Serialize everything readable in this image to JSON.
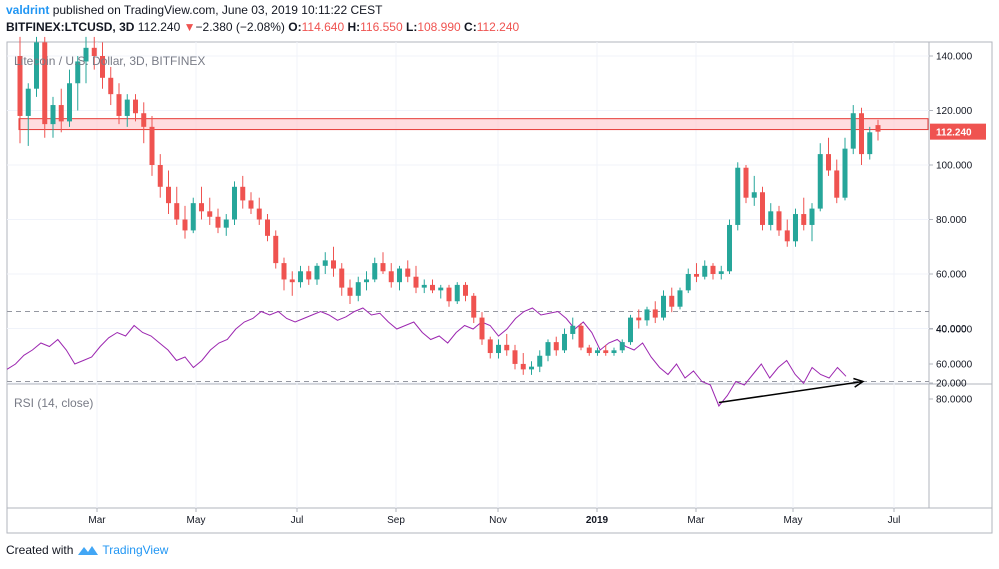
{
  "header": {
    "author": "valdrint",
    "published_text": "published on TradingView.com, June 03, 2019 10:11:22 CEST",
    "symbol": "BITFINEX:LTCUSD, 3D",
    "last": "112.240",
    "change": "−2.380 (−2.08%)",
    "o_label": "O:",
    "o_value": "114.640",
    "h_label": "H:",
    "h_value": "116.550",
    "l_label": "L:",
    "l_value": "108.990",
    "c_label": "C:",
    "c_value": "112.240"
  },
  "footer": {
    "created_with": "Created with",
    "brand": "TradingView"
  },
  "colors": {
    "up": "#26a69a",
    "down": "#ef5350",
    "rsi_line": "#9c27b0",
    "rsi_band": "#f3e5f5",
    "zone_fill": "#ffcdd2",
    "zone_stroke": "#e53935",
    "price_tag": "#ef5350",
    "arrow": "#000000"
  },
  "chart_data": [
    {
      "type": "candlestick",
      "title": "Litecoin / U.S. Dollar, 3D, BITFINEX",
      "y_ticks": [
        "140.000",
        "120.000",
        "100.000",
        "80.000",
        "60.000",
        "40.000",
        "20.000"
      ],
      "ylim": [
        20,
        147
      ],
      "x_ticks": [
        "Mar",
        "May",
        "Jul",
        "Sep",
        "Nov",
        "2019",
        "Mar",
        "May",
        "Jul"
      ],
      "last_price_label": "112.240",
      "resistance_zone": [
        113,
        117
      ],
      "series": [
        {
          "o": 140,
          "h": 147,
          "l": 108,
          "c": 118
        },
        {
          "o": 118,
          "h": 130,
          "l": 107,
          "c": 128
        },
        {
          "o": 128,
          "h": 150,
          "l": 125,
          "c": 145
        },
        {
          "o": 145,
          "h": 150,
          "l": 110,
          "c": 115
        },
        {
          "o": 115,
          "h": 125,
          "l": 110,
          "c": 122
        },
        {
          "o": 122,
          "h": 128,
          "l": 112,
          "c": 116
        },
        {
          "o": 116,
          "h": 135,
          "l": 114,
          "c": 130
        },
        {
          "o": 130,
          "h": 140,
          "l": 120,
          "c": 138
        },
        {
          "o": 138,
          "h": 150,
          "l": 130,
          "c": 143
        },
        {
          "o": 143,
          "h": 148,
          "l": 135,
          "c": 140
        },
        {
          "o": 140,
          "h": 145,
          "l": 128,
          "c": 132
        },
        {
          "o": 132,
          "h": 136,
          "l": 122,
          "c": 126
        },
        {
          "o": 126,
          "h": 130,
          "l": 115,
          "c": 118
        },
        {
          "o": 118,
          "h": 126,
          "l": 114,
          "c": 124
        },
        {
          "o": 124,
          "h": 126,
          "l": 116,
          "c": 119
        },
        {
          "o": 119,
          "h": 123,
          "l": 108,
          "c": 114
        },
        {
          "o": 114,
          "h": 118,
          "l": 96,
          "c": 100
        },
        {
          "o": 100,
          "h": 104,
          "l": 88,
          "c": 92
        },
        {
          "o": 92,
          "h": 98,
          "l": 82,
          "c": 86
        },
        {
          "o": 86,
          "h": 92,
          "l": 78,
          "c": 80
        },
        {
          "o": 80,
          "h": 85,
          "l": 73,
          "c": 76
        },
        {
          "o": 76,
          "h": 88,
          "l": 75,
          "c": 86
        },
        {
          "o": 86,
          "h": 92,
          "l": 80,
          "c": 83
        },
        {
          "o": 83,
          "h": 88,
          "l": 78,
          "c": 81
        },
        {
          "o": 81,
          "h": 84,
          "l": 75,
          "c": 77
        },
        {
          "o": 77,
          "h": 82,
          "l": 74,
          "c": 80
        },
        {
          "o": 80,
          "h": 94,
          "l": 78,
          "c": 92
        },
        {
          "o": 92,
          "h": 96,
          "l": 84,
          "c": 87
        },
        {
          "o": 87,
          "h": 90,
          "l": 82,
          "c": 84
        },
        {
          "o": 84,
          "h": 88,
          "l": 78,
          "c": 80
        },
        {
          "o": 80,
          "h": 82,
          "l": 72,
          "c": 74
        },
        {
          "o": 74,
          "h": 76,
          "l": 62,
          "c": 64
        },
        {
          "o": 64,
          "h": 66,
          "l": 54,
          "c": 58
        },
        {
          "o": 58,
          "h": 61,
          "l": 52,
          "c": 57
        },
        {
          "o": 57,
          "h": 63,
          "l": 55,
          "c": 61
        },
        {
          "o": 61,
          "h": 63,
          "l": 56,
          "c": 58
        },
        {
          "o": 58,
          "h": 64,
          "l": 56,
          "c": 63
        },
        {
          "o": 63,
          "h": 68,
          "l": 60,
          "c": 65
        },
        {
          "o": 65,
          "h": 70,
          "l": 59,
          "c": 62
        },
        {
          "o": 62,
          "h": 64,
          "l": 52,
          "c": 55
        },
        {
          "o": 55,
          "h": 58,
          "l": 49,
          "c": 52
        },
        {
          "o": 52,
          "h": 59,
          "l": 50,
          "c": 57
        },
        {
          "o": 57,
          "h": 61,
          "l": 54,
          "c": 58
        },
        {
          "o": 58,
          "h": 66,
          "l": 57,
          "c": 64
        },
        {
          "o": 64,
          "h": 68,
          "l": 60,
          "c": 61
        },
        {
          "o": 61,
          "h": 64,
          "l": 55,
          "c": 57
        },
        {
          "o": 57,
          "h": 63,
          "l": 54,
          "c": 62
        },
        {
          "o": 62,
          "h": 65,
          "l": 57,
          "c": 59
        },
        {
          "o": 59,
          "h": 63,
          "l": 53,
          "c": 55
        },
        {
          "o": 55,
          "h": 58,
          "l": 53,
          "c": 56
        },
        {
          "o": 56,
          "h": 58,
          "l": 53,
          "c": 54
        },
        {
          "o": 54,
          "h": 56,
          "l": 51,
          "c": 55
        },
        {
          "o": 55,
          "h": 56,
          "l": 48,
          "c": 50
        },
        {
          "o": 50,
          "h": 57,
          "l": 49,
          "c": 56
        },
        {
          "o": 56,
          "h": 57,
          "l": 50,
          "c": 52
        },
        {
          "o": 52,
          "h": 53,
          "l": 42,
          "c": 44
        },
        {
          "o": 44,
          "h": 46,
          "l": 34,
          "c": 36
        },
        {
          "o": 36,
          "h": 37,
          "l": 29,
          "c": 31
        },
        {
          "o": 31,
          "h": 36,
          "l": 29,
          "c": 34
        },
        {
          "o": 34,
          "h": 38,
          "l": 30,
          "c": 32
        },
        {
          "o": 32,
          "h": 34,
          "l": 25,
          "c": 27
        },
        {
          "o": 27,
          "h": 31,
          "l": 23,
          "c": 25
        },
        {
          "o": 25,
          "h": 28,
          "l": 23,
          "c": 26
        },
        {
          "o": 26,
          "h": 32,
          "l": 24,
          "c": 30
        },
        {
          "o": 30,
          "h": 36,
          "l": 28,
          "c": 35
        },
        {
          "o": 35,
          "h": 37,
          "l": 30,
          "c": 32
        },
        {
          "o": 32,
          "h": 40,
          "l": 31,
          "c": 38
        },
        {
          "o": 38,
          "h": 44,
          "l": 36,
          "c": 41
        },
        {
          "o": 41,
          "h": 42,
          "l": 32,
          "c": 33
        },
        {
          "o": 33,
          "h": 34,
          "l": 30,
          "c": 31
        },
        {
          "o": 31,
          "h": 33,
          "l": 30,
          "c": 32
        },
        {
          "o": 32,
          "h": 34,
          "l": 30,
          "c": 31
        },
        {
          "o": 31,
          "h": 33,
          "l": 30,
          "c": 32
        },
        {
          "o": 32,
          "h": 36,
          "l": 31,
          "c": 35
        },
        {
          "o": 35,
          "h": 45,
          "l": 34,
          "c": 44
        },
        {
          "o": 44,
          "h": 47,
          "l": 40,
          "c": 43
        },
        {
          "o": 43,
          "h": 48,
          "l": 41,
          "c": 47
        },
        {
          "o": 47,
          "h": 50,
          "l": 42,
          "c": 44
        },
        {
          "o": 44,
          "h": 54,
          "l": 43,
          "c": 52
        },
        {
          "o": 52,
          "h": 55,
          "l": 46,
          "c": 48
        },
        {
          "o": 48,
          "h": 55,
          "l": 47,
          "c": 54
        },
        {
          "o": 54,
          "h": 62,
          "l": 53,
          "c": 60
        },
        {
          "o": 60,
          "h": 64,
          "l": 57,
          "c": 59
        },
        {
          "o": 59,
          "h": 65,
          "l": 58,
          "c": 63
        },
        {
          "o": 63,
          "h": 64,
          "l": 58,
          "c": 60
        },
        {
          "o": 60,
          "h": 63,
          "l": 58,
          "c": 61
        },
        {
          "o": 61,
          "h": 80,
          "l": 60,
          "c": 78
        },
        {
          "o": 78,
          "h": 101,
          "l": 76,
          "c": 99
        },
        {
          "o": 99,
          "h": 100,
          "l": 86,
          "c": 88
        },
        {
          "o": 88,
          "h": 96,
          "l": 85,
          "c": 90
        },
        {
          "o": 90,
          "h": 92,
          "l": 76,
          "c": 78
        },
        {
          "o": 78,
          "h": 86,
          "l": 76,
          "c": 83
        },
        {
          "o": 83,
          "h": 85,
          "l": 74,
          "c": 76
        },
        {
          "o": 76,
          "h": 80,
          "l": 70,
          "c": 72
        },
        {
          "o": 72,
          "h": 84,
          "l": 70,
          "c": 82
        },
        {
          "o": 82,
          "h": 88,
          "l": 76,
          "c": 78
        },
        {
          "o": 78,
          "h": 86,
          "l": 72,
          "c": 84
        },
        {
          "o": 84,
          "h": 108,
          "l": 83,
          "c": 104
        },
        {
          "o": 104,
          "h": 110,
          "l": 96,
          "c": 98
        },
        {
          "o": 98,
          "h": 102,
          "l": 86,
          "c": 88
        },
        {
          "o": 88,
          "h": 110,
          "l": 87,
          "c": 106
        },
        {
          "o": 106,
          "h": 122,
          "l": 104,
          "c": 119
        },
        {
          "o": 119,
          "h": 121,
          "l": 100,
          "c": 104
        },
        {
          "o": 104,
          "h": 114,
          "l": 102,
          "c": 112
        },
        {
          "o": 114.64,
          "h": 116.55,
          "l": 108.99,
          "c": 112.24
        }
      ]
    },
    {
      "type": "line",
      "title": "RSI (14, close)",
      "y_ticks": [
        "80.0000",
        "60.0000",
        "40.0000"
      ],
      "ylim": [
        26,
        86
      ],
      "bands": [
        30,
        70
      ],
      "arrow_from": [
        84,
        82
      ],
      "arrow_to": [
        101,
        70
      ],
      "values": [
        63,
        60,
        55,
        52,
        48,
        50,
        46,
        52,
        60,
        58,
        56,
        50,
        45,
        42,
        44,
        38,
        42,
        44,
        48,
        52,
        58,
        56,
        62,
        58,
        52,
        48,
        46,
        40,
        36,
        34,
        30,
        32,
        30,
        34,
        36,
        34,
        32,
        30,
        32,
        35,
        33,
        30,
        28,
        32,
        31,
        36,
        40,
        38,
        36,
        42,
        46,
        44,
        48,
        42,
        38,
        40,
        36,
        38,
        44,
        40,
        34,
        30,
        28,
        32,
        31,
        30,
        34,
        40,
        36,
        42,
        52,
        48,
        46,
        50,
        52,
        48,
        56,
        62,
        66,
        60,
        68,
        64,
        70,
        72,
        84,
        78,
        70,
        72,
        66,
        60,
        68,
        62,
        58,
        66,
        71,
        62,
        66,
        68,
        62,
        67
      ]
    }
  ]
}
